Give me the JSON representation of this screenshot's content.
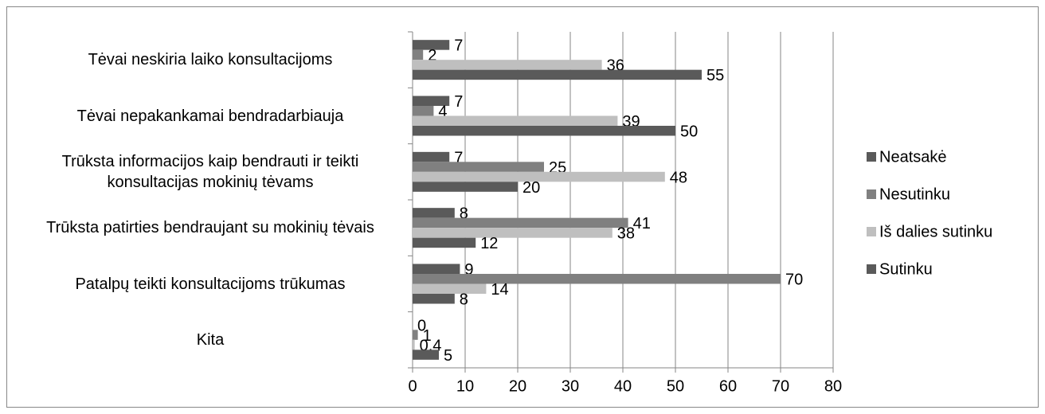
{
  "chart_data": {
    "type": "bar",
    "orientation": "horizontal",
    "categories": [
      "Tėvai neskiria laiko konsultacijoms",
      "Tėvai nepakankamai bendradarbiauja",
      "Trūksta informacijos kaip bendrauti ir teikti konsultacijas mokinių tėvams",
      "Trūksta patirties bendraujant su mokinių tėvais",
      "Patalpų teikti konsultacijoms trūkumas",
      "Kita"
    ],
    "series": [
      {
        "name": "Neatsakė",
        "color": "#5a5a5a",
        "values": [
          7,
          7,
          7,
          8,
          9,
          0
        ]
      },
      {
        "name": "Nesutinku",
        "color": "#808080",
        "values": [
          2,
          4,
          25,
          41,
          70,
          1
        ]
      },
      {
        "name": "Iš dalies sutinku",
        "color": "#bfbfbf",
        "values": [
          36,
          39,
          48,
          38,
          14,
          0.4
        ],
        "value_labels": [
          "36",
          "39",
          "48",
          "38",
          "14",
          "0,4"
        ]
      },
      {
        "name": "Sutinku",
        "color": "#5a5a5a",
        "values": [
          55,
          50,
          20,
          12,
          8,
          5
        ]
      }
    ],
    "xlim": [
      0,
      80
    ],
    "xticks": [
      0,
      10,
      20,
      30,
      40,
      50,
      60,
      70,
      80
    ],
    "grid": true,
    "legend": "right"
  }
}
